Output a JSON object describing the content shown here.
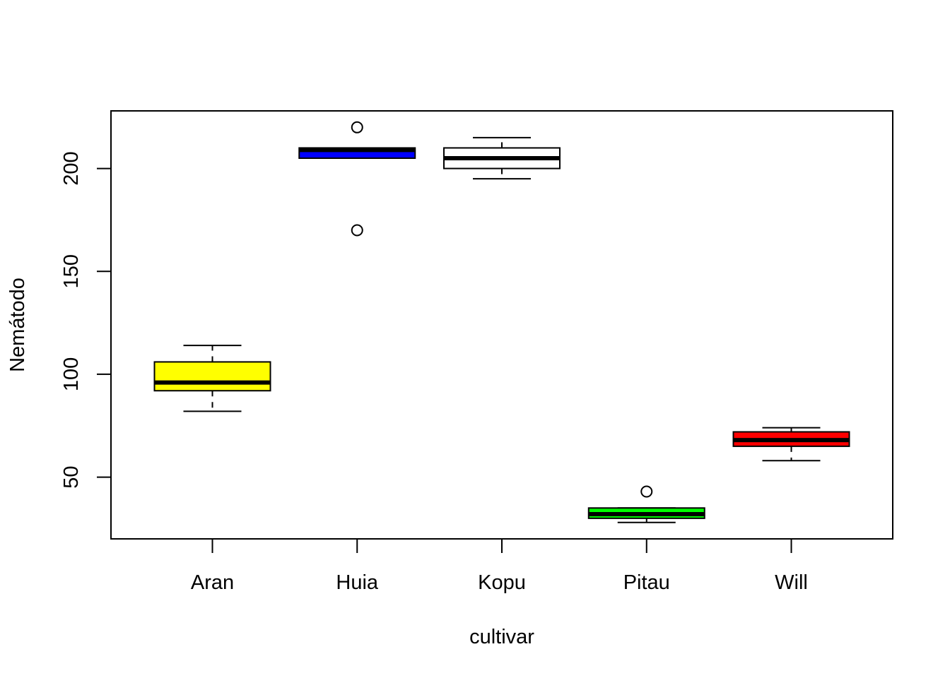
{
  "chart_data": {
    "type": "boxplot",
    "xlabel": "cultivar",
    "ylabel": "Nemátodo",
    "ylim": [
      20,
      228
    ],
    "y_ticks": [
      50,
      100,
      150,
      200
    ],
    "grid": false,
    "legend": "none",
    "categories": [
      "Aran",
      "Huia",
      "Kopu",
      "Pitau",
      "Will"
    ],
    "boxes": [
      {
        "category": "Aran",
        "color": "#ffff00",
        "whisker_low": 82,
        "q1": 92,
        "median": 96,
        "q3": 106,
        "whisker_high": 114,
        "outliers": []
      },
      {
        "category": "Huia",
        "color": "#0000ff",
        "whisker_low": 205,
        "q1": 205,
        "median": 209,
        "q3": 210,
        "whisker_high": 210,
        "outliers": [
          170,
          220
        ]
      },
      {
        "category": "Kopu",
        "color": "#ffffff",
        "whisker_low": 195,
        "q1": 200,
        "median": 205,
        "q3": 210,
        "whisker_high": 215,
        "outliers": []
      },
      {
        "category": "Pitau",
        "color": "#00ff00",
        "whisker_low": 28,
        "q1": 30,
        "median": 32,
        "q3": 35,
        "whisker_high": 35,
        "outliers": [
          43
        ]
      },
      {
        "category": "Will",
        "color": "#ff0000",
        "whisker_low": 58,
        "q1": 65,
        "median": 68,
        "q3": 72,
        "whisker_high": 74,
        "outliers": []
      }
    ]
  }
}
